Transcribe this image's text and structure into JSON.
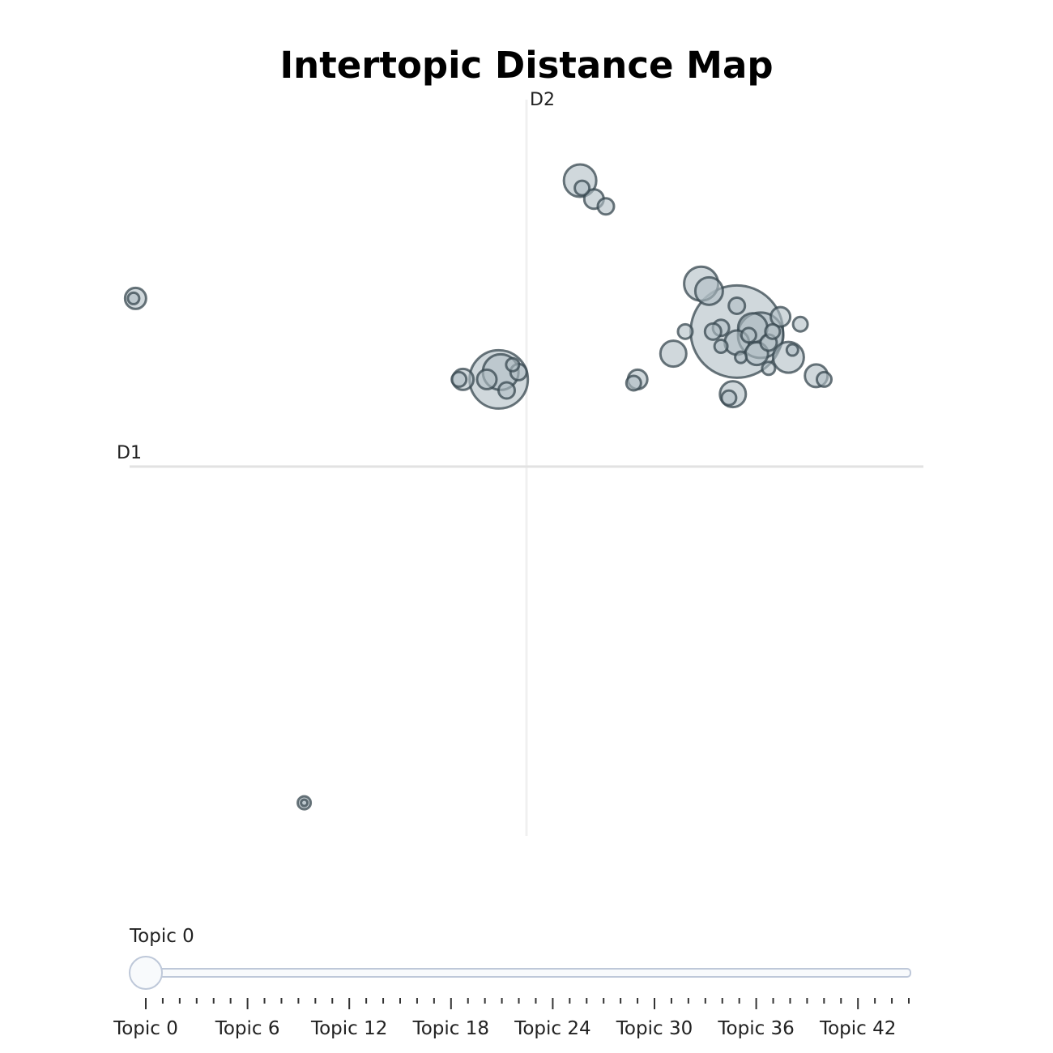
{
  "chart_data": {
    "type": "scatter",
    "title": "Intertopic Distance Map",
    "xlabel": "D1",
    "ylabel": "D2",
    "xlim": [
      -10,
      10
    ],
    "ylim": [
      -10,
      10
    ],
    "grid": false,
    "points": [
      {
        "x": 5.3,
        "y": 3.7,
        "r": 57
      },
      {
        "x": 5.9,
        "y": 3.6,
        "r": 28
      },
      {
        "x": 4.4,
        "y": 5.0,
        "r": 21
      },
      {
        "x": 4.6,
        "y": 4.8,
        "r": 17
      },
      {
        "x": 6.4,
        "y": 4.1,
        "r": 12
      },
      {
        "x": 5.7,
        "y": 3.8,
        "r": 18
      },
      {
        "x": 5.6,
        "y": 3.6,
        "r": 9
      },
      {
        "x": 6.6,
        "y": 3.0,
        "r": 19
      },
      {
        "x": 6.1,
        "y": 3.4,
        "r": 10
      },
      {
        "x": 6.2,
        "y": 3.7,
        "r": 9
      },
      {
        "x": 6.9,
        "y": 3.9,
        "r": 9
      },
      {
        "x": 5.3,
        "y": 4.4,
        "r": 10
      },
      {
        "x": 4.9,
        "y": 3.8,
        "r": 10
      },
      {
        "x": 4.7,
        "y": 3.7,
        "r": 10
      },
      {
        "x": 4.0,
        "y": 3.7,
        "r": 9
      },
      {
        "x": 3.7,
        "y": 3.1,
        "r": 16
      },
      {
        "x": 5.3,
        "y": 3.4,
        "r": 15
      },
      {
        "x": 5.8,
        "y": 3.1,
        "r": 14
      },
      {
        "x": 4.9,
        "y": 3.3,
        "r": 8
      },
      {
        "x": 5.4,
        "y": 3.0,
        "r": 7
      },
      {
        "x": 6.7,
        "y": 3.2,
        "r": 7
      },
      {
        "x": 6.1,
        "y": 2.7,
        "r": 8
      },
      {
        "x": 7.3,
        "y": 2.5,
        "r": 14
      },
      {
        "x": 7.5,
        "y": 2.4,
        "r": 9
      },
      {
        "x": 5.2,
        "y": 2.0,
        "r": 16
      },
      {
        "x": 5.1,
        "y": 1.9,
        "r": 9
      },
      {
        "x": 2.8,
        "y": 2.4,
        "r": 12
      },
      {
        "x": 2.7,
        "y": 2.3,
        "r": 9
      },
      {
        "x": 1.35,
        "y": 7.8,
        "r": 20
      },
      {
        "x": 1.4,
        "y": 7.6,
        "r": 9
      },
      {
        "x": 1.7,
        "y": 7.3,
        "r": 12
      },
      {
        "x": 2.0,
        "y": 7.1,
        "r": 10
      },
      {
        "x": -0.7,
        "y": 2.4,
        "r": 36
      },
      {
        "x": -0.65,
        "y": 2.6,
        "r": 22
      },
      {
        "x": -1.0,
        "y": 2.4,
        "r": 12
      },
      {
        "x": -0.5,
        "y": 2.1,
        "r": 10
      },
      {
        "x": -0.2,
        "y": 2.6,
        "r": 10
      },
      {
        "x": -0.35,
        "y": 2.8,
        "r": 8
      },
      {
        "x": -1.6,
        "y": 2.4,
        "r": 13
      },
      {
        "x": -1.7,
        "y": 2.4,
        "r": 9
      },
      {
        "x": -9.85,
        "y": 4.6,
        "r": 13
      },
      {
        "x": -9.9,
        "y": 4.6,
        "r": 7
      },
      {
        "x": -5.6,
        "y": -9.1,
        "r": 8
      },
      {
        "x": -5.6,
        "y": -9.1,
        "r": 4
      }
    ]
  },
  "slider": {
    "current_label": "Topic 0",
    "value": 0,
    "min": 0,
    "max": 45,
    "tick_labels": [
      "Topic 0",
      "Topic 6",
      "Topic 12",
      "Topic 18",
      "Topic 24",
      "Topic 30",
      "Topic 36",
      "Topic 42"
    ],
    "labeled_steps": [
      0,
      6,
      12,
      18,
      24,
      30,
      36,
      42
    ]
  }
}
